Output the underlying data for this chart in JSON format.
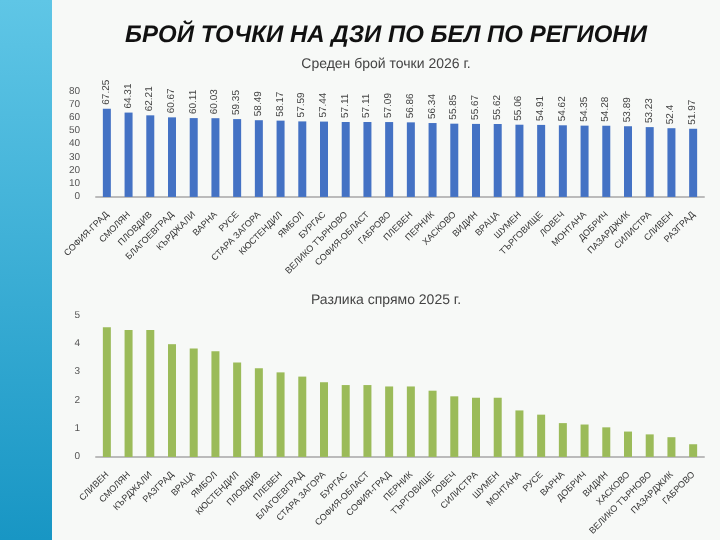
{
  "chart_data": [
    {
      "type": "bar",
      "title": "БРОЙ ТОЧКИ НА ДЗИ ПО БЕЛ ПО РЕГИОНИ",
      "subtitle": "Среден брой точки 2026 г.",
      "categories": [
        "СОФИЯ-ГРАД",
        "СМОЛЯН",
        "ПЛОВДИВ",
        "БЛАГОЕВГРАД",
        "КЪРДЖАЛИ",
        "ВАРНА",
        "РУСЕ",
        "СТАРА ЗАГОРА",
        "КЮСТЕНДИЛ",
        "ЯМБОЛ",
        "БУРГАС",
        "ВЕЛИКО ТЪРНОВО",
        "СОФИЯ-ОБЛАСТ",
        "ГАБРОВО",
        "ПЛЕВЕН",
        "ПЕРНИК",
        "ХАСКОВО",
        "ВИДИН",
        "ВРАЦА",
        "ШУМЕН",
        "ТЪРГОВИЩЕ",
        "ЛОВЕЧ",
        "МОНТАНА",
        "ДОБРИЧ",
        "ПАЗАРДЖИК",
        "СИЛИСТРА",
        "СЛИВЕН",
        "РАЗГРАД"
      ],
      "values": [
        67.25,
        64.31,
        62.21,
        60.67,
        60.11,
        60.03,
        59.35,
        58.49,
        58.17,
        57.59,
        57.44,
        57.11,
        57.11,
        57.09,
        56.86,
        56.34,
        55.85,
        55.67,
        55.62,
        55.06,
        54.91,
        54.62,
        54.35,
        54.28,
        53.89,
        53.23,
        52.4,
        51.97
      ],
      "color": "#4472c4",
      "ylim": [
        0,
        80
      ],
      "yticks": [
        0,
        10,
        20,
        30,
        40,
        50,
        60,
        70,
        80
      ],
      "data_labels": true
    },
    {
      "type": "bar",
      "title": "Разлика спрямо 2025 г.",
      "categories": [
        "СЛИВЕН",
        "СМОЛЯН",
        "КЪРДЖАЛИ",
        "РАЗГРАД",
        "ВРАЦА",
        "ЯМБОЛ",
        "КЮСТЕНДИЛ",
        "ПЛОВДИВ",
        "ПЛЕВЕН",
        "БЛАГОЕВГРАД",
        "СТАРА ЗАГОРА",
        "БУРГАС",
        "СОФИЯ-ОБЛАСТ",
        "СОФИЯ-ГРАД",
        "ПЕРНИК",
        "ТЪРГОВИЩЕ",
        "ЛОВЕЧ",
        "СИЛИСТРА",
        "ШУМЕН",
        "МОНТАНА",
        "РУСЕ",
        "ВАРНА",
        "ДОБРИЧ",
        "ВИДИН",
        "ХАСКОВО",
        "ВЕЛИКО ТЪРНОВО",
        "ПАЗАРДЖИК",
        "ГАБРОВО"
      ],
      "values": [
        4.6,
        4.5,
        4.5,
        4.0,
        3.85,
        3.75,
        3.35,
        3.15,
        3.0,
        2.85,
        2.65,
        2.55,
        2.55,
        2.5,
        2.5,
        2.35,
        2.15,
        2.1,
        2.1,
        1.65,
        1.5,
        1.2,
        1.15,
        1.05,
        0.9,
        0.8,
        0.7,
        0.45
      ],
      "color": "#9bbb59",
      "ylim": [
        0,
        5
      ],
      "yticks": [
        0,
        1,
        2,
        3,
        4,
        5
      ]
    }
  ]
}
